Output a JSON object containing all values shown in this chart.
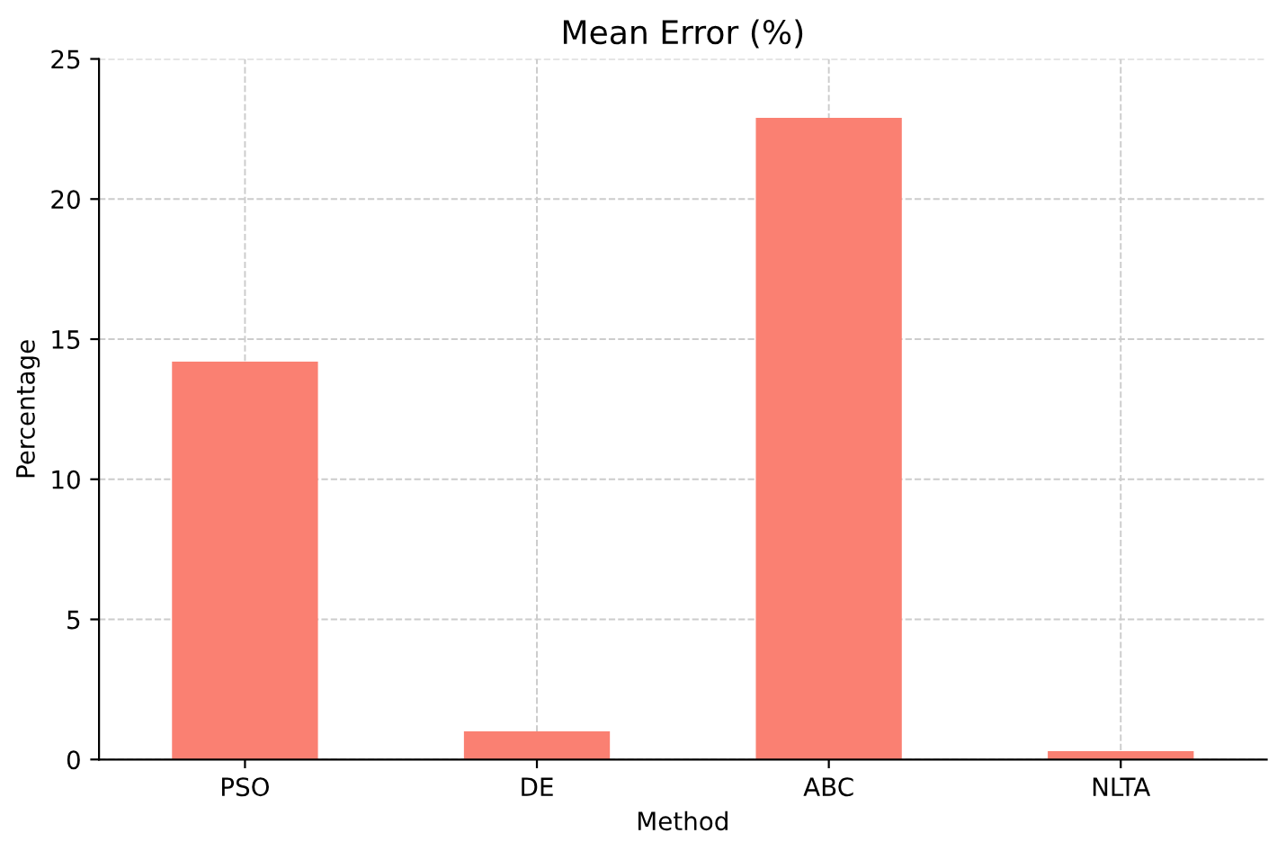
{
  "chart_data": {
    "type": "bar",
    "title": "Mean Error (%)",
    "xlabel": "Method",
    "ylabel": "Percentage",
    "categories": [
      "PSO",
      "DE",
      "ABC",
      "NLTA"
    ],
    "values": [
      14.2,
      1.0,
      22.9,
      0.3
    ],
    "color": "#fa8072",
    "ylim": [
      0,
      25
    ],
    "yticks": [
      0,
      5,
      10,
      15,
      20,
      25
    ],
    "grid": true
  }
}
